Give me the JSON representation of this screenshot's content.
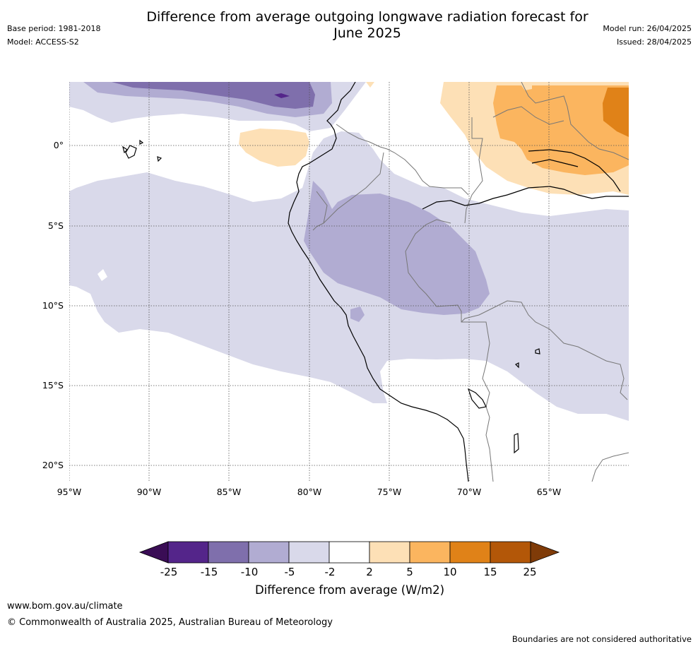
{
  "title": "Difference from average outgoing longwave radiation forecast for June 2025",
  "title_line1": "Difference from average outgoing longwave radiation forecast for",
  "title_line2": "June 2025",
  "base_period": "Base period: 1981-2018",
  "model": "Model: ACCESS-S2",
  "model_run": "Model run: 26/04/2025",
  "issued": "Issued: 28/04/2025",
  "lon_ticks": [
    "95°W",
    "90°W",
    "85°W",
    "80°W",
    "75°W",
    "70°W",
    "65°W"
  ],
  "lat_ticks": [
    "0°",
    "5°S",
    "10°S",
    "15°S",
    "20°S"
  ],
  "colorbar": {
    "label": "Difference from average (W/m2)",
    "ticks": [
      "-25",
      "-15",
      "-10",
      "-5",
      "-2",
      "2",
      "5",
      "10",
      "15",
      "25"
    ],
    "colors": {
      "below_-25": "#3a0d55",
      "-25_-15": "#54258a",
      "-15_-10": "#7f6fac",
      "-10_-5": "#b1acd2",
      "-5_-2": "#d9d9ea",
      "-2_2": "#ffffff",
      "2_5": "#fde0b6",
      "5_10": "#fbb55f",
      "10_15": "#e08218",
      "15_25": "#b35708",
      "above_25": "#7f3b08"
    }
  },
  "footer_url": "www.bom.gov.au/climate",
  "footer_copyright": "© Commonwealth of Australia 2025, Australian Bureau of Meteorology",
  "disclaimer": "Boundaries are not considered authoritative"
}
